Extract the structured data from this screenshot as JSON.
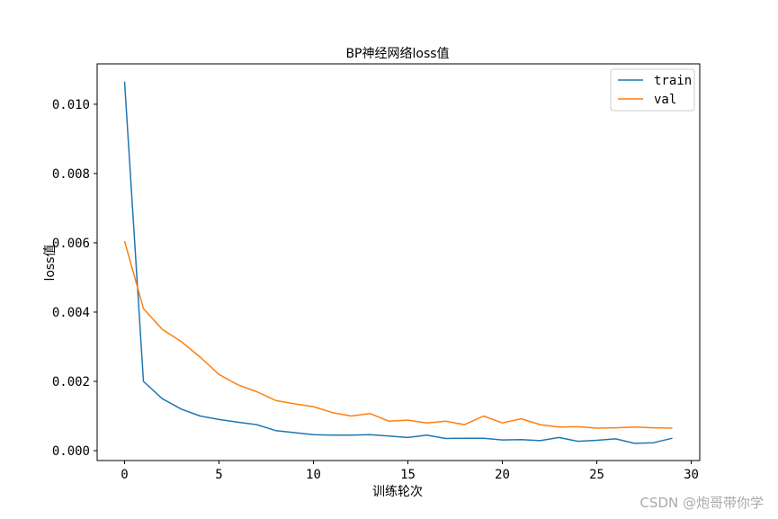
{
  "chart_data": {
    "type": "line",
    "title": "BP神经网络loss值",
    "xlabel": "训练轮次",
    "ylabel": "loss值",
    "xlim": [
      -1.45,
      30.45
    ],
    "ylim": [
      -0.000285,
      0.011165
    ],
    "x_ticks": [
      0,
      5,
      10,
      15,
      20,
      25,
      30
    ],
    "x_tick_labels": [
      "0",
      "5",
      "10",
      "15",
      "20",
      "25",
      "30"
    ],
    "y_ticks": [
      0.0,
      0.002,
      0.004,
      0.006,
      0.008,
      0.01
    ],
    "y_tick_labels": [
      "0.000",
      "0.002",
      "0.004",
      "0.006",
      "0.008",
      "0.010"
    ],
    "grid": false,
    "legend_position": "top-right",
    "x": [
      0,
      1,
      2,
      3,
      4,
      5,
      6,
      7,
      8,
      9,
      10,
      11,
      12,
      13,
      14,
      15,
      16,
      17,
      18,
      19,
      20,
      21,
      22,
      23,
      24,
      25,
      26,
      27,
      28,
      29
    ],
    "series": [
      {
        "name": "train",
        "color": "#1f77b4",
        "values": [
          0.01065,
          0.002,
          0.0015,
          0.0012,
          0.001,
          0.0009,
          0.00082,
          0.00075,
          0.00058,
          0.00052,
          0.00046,
          0.00045,
          0.00045,
          0.00046,
          0.00042,
          0.00038,
          0.00045,
          0.00035,
          0.00036,
          0.00036,
          0.00031,
          0.00032,
          0.00029,
          0.00038,
          0.00027,
          0.0003,
          0.00034,
          0.00021,
          0.00023,
          0.00036
        ]
      },
      {
        "name": "val",
        "color": "#ff7f0e",
        "values": [
          0.00605,
          0.0041,
          0.0035,
          0.00315,
          0.0027,
          0.0022,
          0.0019,
          0.0017,
          0.00145,
          0.00135,
          0.00127,
          0.0011,
          0.001,
          0.00107,
          0.00085,
          0.00088,
          0.0008,
          0.00085,
          0.00075,
          0.001,
          0.0008,
          0.00092,
          0.00075,
          0.00068,
          0.00069,
          0.00065,
          0.00066,
          0.00068,
          0.00066,
          0.00065
        ]
      }
    ]
  },
  "watermark": "CSDN @炮哥带你学"
}
